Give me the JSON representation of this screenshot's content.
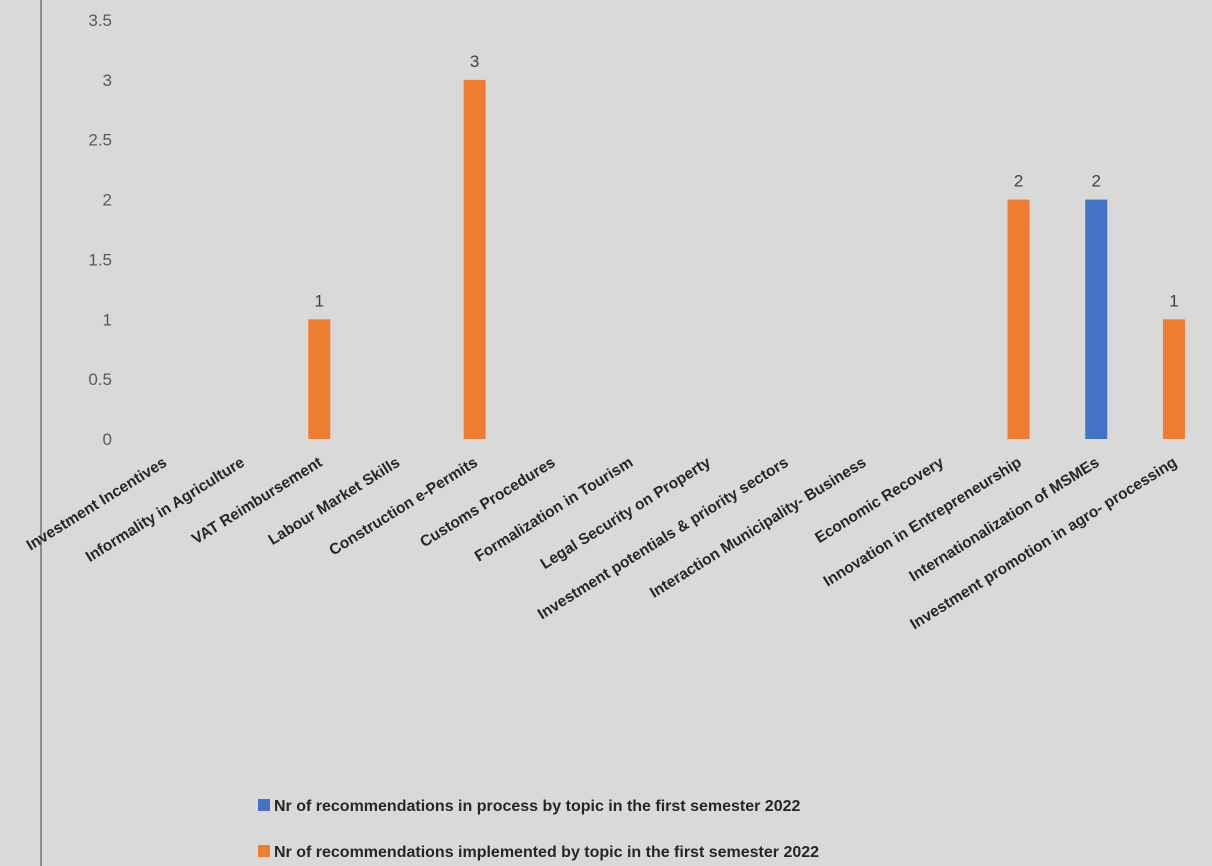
{
  "chart_data": {
    "type": "bar",
    "categories": [
      "Investment Incentives",
      "Informality in Agriculture",
      "VAT Reimbursement",
      "Labour Market Skills",
      "Construction e-Permits",
      "Customs Procedures",
      "Formalization in Tourism",
      "Legal Security on Property",
      "Investment potentials & priority sectors",
      "Interaction Municipality- Business",
      "Economic Recovery",
      "Innovation in Entrepreneurship",
      "Internationalization of MSMEs",
      "Investment promotion in agro- processing"
    ],
    "series": [
      {
        "name": "Nr of recommendations in process by topic in the first semester 2022",
        "color": "#4472c4",
        "values": [
          null,
          null,
          null,
          null,
          null,
          null,
          null,
          null,
          null,
          null,
          null,
          null,
          2,
          null
        ]
      },
      {
        "name": "Nr of recommendations implemented by topic  in the first semester 2022",
        "color": "#ed7d31",
        "values": [
          null,
          null,
          1,
          null,
          3,
          null,
          null,
          null,
          null,
          null,
          null,
          2,
          null,
          1
        ]
      }
    ],
    "yticks": [
      "0",
      "0.5",
      "1",
      "1.5",
      "2",
      "2.5",
      "3",
      "3.5"
    ],
    "ylim": [
      0,
      3.5
    ],
    "grid": false,
    "legend_position": "bottom",
    "title": "",
    "xlabel": "",
    "ylabel": ""
  }
}
